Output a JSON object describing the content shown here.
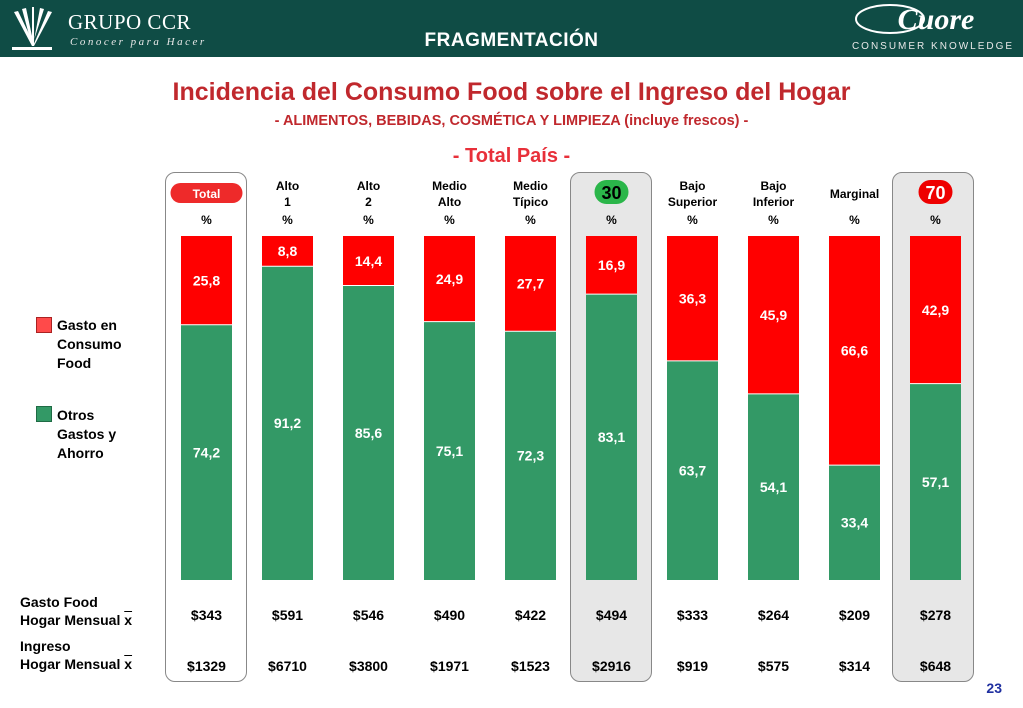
{
  "header": {
    "brand_left": "GRUPO CCR",
    "brand_left_tagline": "Conocer para Hacer",
    "title": "FRAGMENTACIÓN",
    "brand_right": "Cuore",
    "brand_right_tagline": "CONSUMER KNOWLEDGE"
  },
  "main_title": "Incidencia del Consumo Food sobre el Ingreso del Hogar",
  "subtitle": "- ALIMENTOS, BEBIDAS, COSMÉTICA Y LIMPIEZA (incluye frescos) -",
  "scope": "- Total País -",
  "colors": {
    "food": "#ff0000",
    "other": "#339966",
    "title": "#c0282d",
    "header_bg": "#0f4c45",
    "badge_green": "#2bb64a"
  },
  "legend": {
    "food_label_lines": [
      "Gasto en",
      "Consumo",
      "Food"
    ],
    "other_label_lines": [
      "Otros",
      "Gastos y",
      "Ahorro"
    ]
  },
  "row_labels": {
    "gasto_lines": [
      "Gasto Food",
      "Hogar Mensual"
    ],
    "ingreso_lines": [
      "Ingreso",
      "Hogar Mensual"
    ],
    "mean_symbol": "x"
  },
  "page_number": "23",
  "chart_data": {
    "type": "bar",
    "stacked": true,
    "normalized_100": true,
    "categories": [
      "Total",
      "Alto 1",
      "Alto 2",
      "Medio Alto",
      "Medio Típico",
      "Bajo Superior",
      "Bajo Inferior",
      "Marginal"
    ],
    "columns": [
      {
        "label": "Total",
        "badge": "pill",
        "unit": "%",
        "food": 25.8,
        "other": 74.2,
        "food_label": "25,8",
        "other_label": "74,2",
        "gasto": "$343",
        "ingreso": "$1329"
      },
      {
        "label": "Alto 1",
        "unit": "%",
        "food": 8.8,
        "other": 91.2,
        "food_label": "8,8",
        "other_label": "91,2",
        "gasto": "$591",
        "ingreso": "$6710"
      },
      {
        "label": "Alto 2",
        "unit": "%",
        "food": 14.4,
        "other": 85.6,
        "food_label": "14,4",
        "other_label": "85,6",
        "gasto": "$546",
        "ingreso": "$3800"
      },
      {
        "label": "Medio Alto",
        "unit": "%",
        "food": 24.9,
        "other": 75.1,
        "food_label": "24,9",
        "other_label": "75,1",
        "gasto": "$490",
        "ingreso": "$1971"
      },
      {
        "label": "Medio Típico",
        "unit": "%",
        "food": 27.7,
        "other": 72.3,
        "food_label": "27,7",
        "other_label": "72,3",
        "gasto": "$422",
        "ingreso": "$1523"
      },
      {
        "label": "30",
        "badge": "green",
        "unit": "%",
        "food": 16.9,
        "other": 83.1,
        "food_label": "16,9",
        "other_label": "83,1",
        "gasto": "$494",
        "ingreso": "$2916"
      },
      {
        "label": "Bajo Superior",
        "unit": "%",
        "food": 36.3,
        "other": 63.7,
        "food_label": "36,3",
        "other_label": "63,7",
        "gasto": "$333",
        "ingreso": "$919"
      },
      {
        "label": "Bajo Inferior",
        "unit": "%",
        "food": 45.9,
        "other": 54.1,
        "food_label": "45,9",
        "other_label": "54,1",
        "gasto": "$264",
        "ingreso": "$575"
      },
      {
        "label": "Marginal",
        "unit": "%",
        "food": 66.6,
        "other": 33.4,
        "food_label": "66,6",
        "other_label": "33,4",
        "gasto": "$209",
        "ingreso": "$314"
      },
      {
        "label": "70",
        "badge": "red",
        "unit": "%",
        "food": 42.9,
        "other": 57.1,
        "food_label": "42,9",
        "other_label": "57,1",
        "gasto": "$278",
        "ingreso": "$648"
      }
    ]
  }
}
